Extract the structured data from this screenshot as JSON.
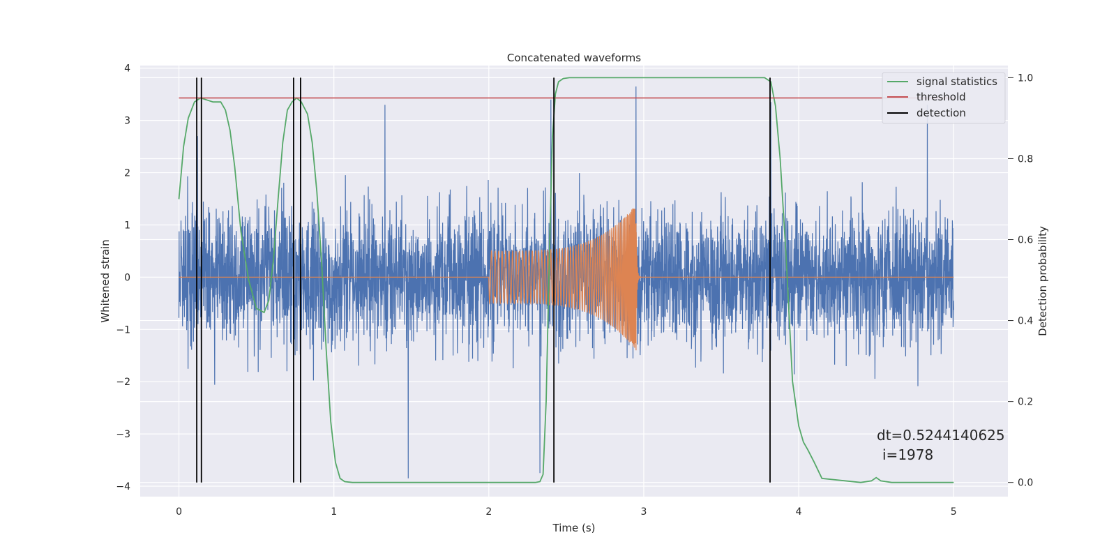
{
  "chart_data": {
    "type": "line",
    "title": "Concatenated waveforms",
    "xlabel": "Time (s)",
    "ylabel": "Whitened strain",
    "y2label": "Detection probability",
    "xlim": [
      -0.25,
      5.35
    ],
    "ylim": [
      -4.2,
      4.05
    ],
    "y2lim": [
      -0.035,
      1.03
    ],
    "xticks": [
      0,
      1,
      2,
      3,
      4,
      5
    ],
    "yticks": [
      -4,
      -3,
      -2,
      -1,
      0,
      1,
      2,
      3,
      4
    ],
    "y2ticks": [
      0.0,
      0.2,
      0.4,
      0.6,
      0.8,
      1.0
    ],
    "grid": true,
    "legend_position": "upper right",
    "annotation": [
      "dt=0.5244140625",
      "i=1978"
    ],
    "colors": {
      "axes_bg": "#eaeaf2",
      "grid": "#ffffff",
      "noise": "#4c72b0",
      "waveform": "#dd8452",
      "signal": "#55a868",
      "threshold": "#c44e52",
      "detection": "#000000"
    },
    "series": [
      {
        "name": "signal statistics",
        "axis": "right",
        "x": [
          0.0,
          0.03,
          0.06,
          0.1,
          0.14,
          0.18,
          0.22,
          0.27,
          0.3,
          0.33,
          0.36,
          0.4,
          0.45,
          0.5,
          0.55,
          0.58,
          0.61,
          0.64,
          0.67,
          0.7,
          0.73,
          0.76,
          0.79,
          0.83,
          0.86,
          0.89,
          0.92,
          0.95,
          0.98,
          1.01,
          1.04,
          1.07,
          1.12,
          1.5,
          2.0,
          2.3,
          2.33,
          2.35,
          2.37,
          2.39,
          2.41,
          2.43,
          2.45,
          2.48,
          2.52,
          2.6,
          3.0,
          3.5,
          3.78,
          3.82,
          3.85,
          3.88,
          3.92,
          3.96,
          4.0,
          4.03,
          4.06,
          4.1,
          4.15,
          4.4,
          4.47,
          4.5,
          4.53,
          4.6,
          5.0
        ],
        "y": [
          0.7,
          0.83,
          0.9,
          0.94,
          0.95,
          0.945,
          0.94,
          0.94,
          0.92,
          0.87,
          0.78,
          0.62,
          0.5,
          0.43,
          0.42,
          0.45,
          0.55,
          0.7,
          0.84,
          0.92,
          0.94,
          0.95,
          0.94,
          0.91,
          0.84,
          0.72,
          0.55,
          0.33,
          0.15,
          0.05,
          0.01,
          0.002,
          0.0,
          0.0,
          0.0,
          0.0,
          0.002,
          0.02,
          0.2,
          0.55,
          0.85,
          0.96,
          0.99,
          0.998,
          1.0,
          1.0,
          1.0,
          1.0,
          1.0,
          0.99,
          0.93,
          0.8,
          0.55,
          0.25,
          0.14,
          0.1,
          0.08,
          0.05,
          0.01,
          0.0,
          0.004,
          0.012,
          0.004,
          0.0,
          0.0
        ]
      },
      {
        "name": "threshold",
        "axis": "right",
        "x": [
          0,
          5
        ],
        "y": [
          0.95,
          0.95
        ]
      },
      {
        "name": "detection",
        "axis": "right",
        "type": "vlines",
        "x": [
          0.115,
          0.145,
          0.74,
          0.785,
          2.42,
          3.815
        ],
        "ymin": 0.0,
        "ymax": 1.0
      }
    ],
    "noise": {
      "x_range": [
        0,
        5
      ],
      "samples": 4096,
      "sigma": 0.62,
      "clip": [
        -3.9,
        3.7
      ],
      "notable_peaks": [
        [
          0.12,
          2.7
        ],
        [
          0.74,
          2.8
        ],
        [
          1.33,
          3.3
        ],
        [
          1.48,
          -3.85
        ],
        [
          2.33,
          -3.75
        ],
        [
          2.4,
          3.4
        ],
        [
          2.95,
          3.65
        ],
        [
          3.82,
          3.35
        ],
        [
          4.83,
          3.3
        ]
      ]
    },
    "waveform": {
      "x_range": [
        2.0,
        2.95
      ],
      "amplitude_start": 0.5,
      "amplitude_end": 1.4,
      "merger_time": 2.95
    }
  }
}
